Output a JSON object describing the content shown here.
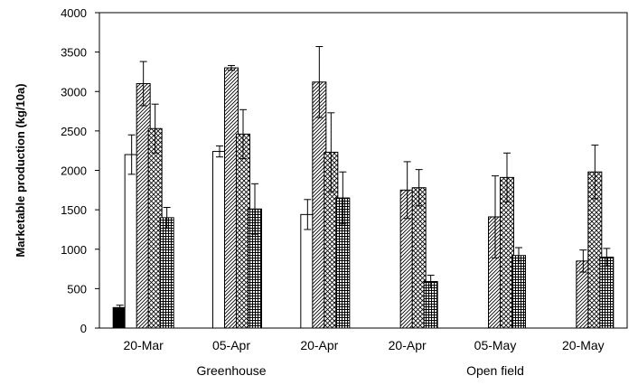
{
  "chart_data": {
    "type": "bar",
    "ylabel": "Marketable production (kg/10a)",
    "ylim": [
      0,
      4000
    ],
    "yticks": [
      0,
      500,
      1000,
      1500,
      2000,
      2500,
      3000,
      3500,
      4000
    ],
    "grid": false,
    "categories": [
      "20-Mar",
      "05-Apr",
      "20-Apr",
      "20-Apr",
      "05-May",
      "20-May"
    ],
    "groups": [
      {
        "label": "Greenhouse",
        "span": [
          0,
          2
        ]
      },
      {
        "label": "Open field",
        "span": [
          3,
          5
        ]
      }
    ],
    "series": [
      {
        "fill": "solid-black",
        "values": [
          260,
          null,
          null,
          null,
          null,
          null
        ],
        "errors": [
          30,
          null,
          null,
          null,
          null,
          null
        ]
      },
      {
        "fill": "white",
        "values": [
          2200,
          2240,
          1440,
          null,
          null,
          null
        ],
        "errors": [
          250,
          70,
          190,
          null,
          null,
          null
        ]
      },
      {
        "fill": "diagonal-hatch",
        "values": [
          3100,
          3300,
          3120,
          1750,
          1410,
          850
        ],
        "errors": [
          280,
          30,
          450,
          360,
          520,
          140
        ]
      },
      {
        "fill": "cross-hatch",
        "values": [
          2530,
          2460,
          2230,
          1780,
          1910,
          1980
        ],
        "errors": [
          310,
          310,
          500,
          230,
          310,
          340
        ]
      },
      {
        "fill": "grid-hatch",
        "values": [
          1400,
          1510,
          1650,
          590,
          920,
          900
        ],
        "errors": [
          130,
          320,
          330,
          80,
          100,
          110
        ]
      }
    ]
  }
}
